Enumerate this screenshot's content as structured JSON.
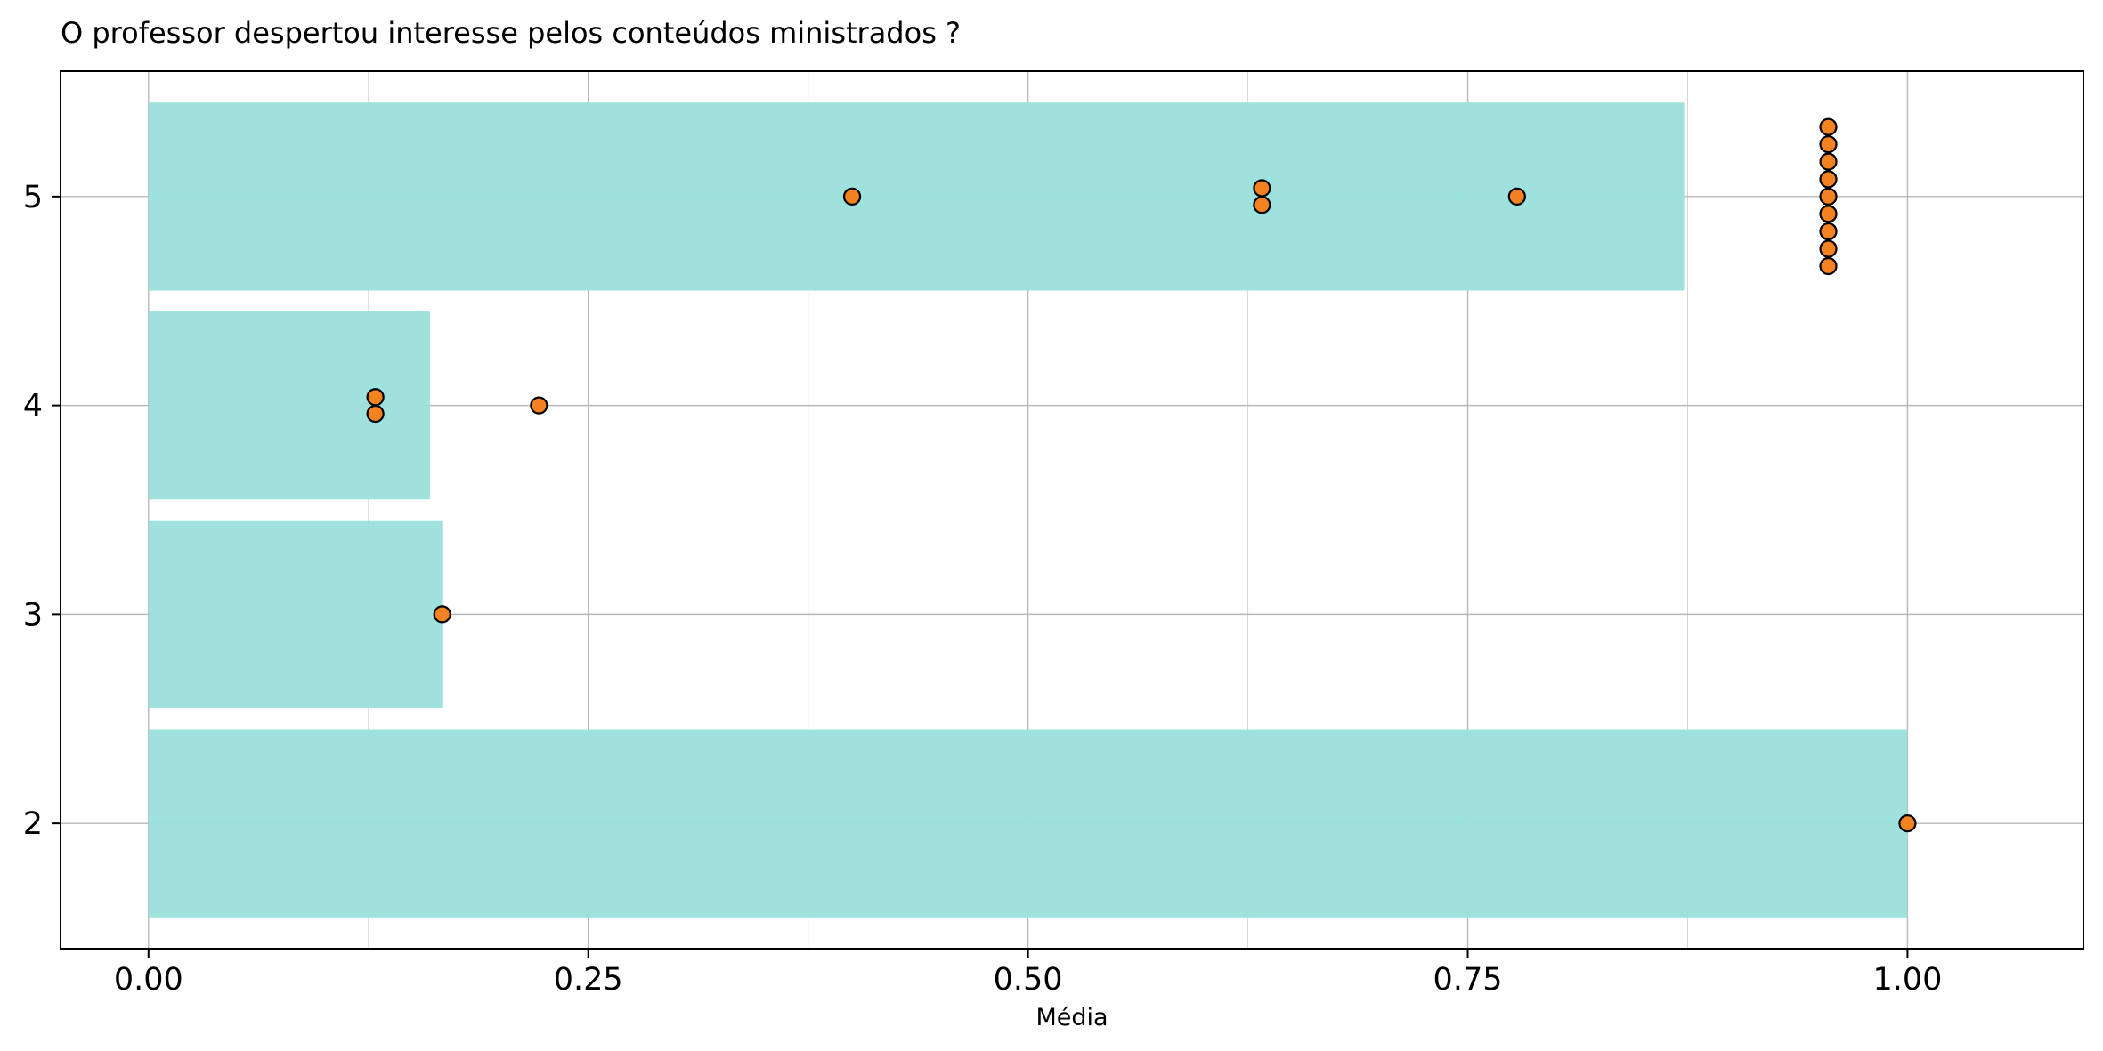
{
  "chart_data": {
    "type": "bar",
    "orientation": "horizontal",
    "title": "O professor despertou interesse pelos conteúdos ministrados ?",
    "xlabel": "Média",
    "ylabel": "",
    "xlim": [
      -0.05,
      1.1
    ],
    "ylim": [
      1.4,
      5.6
    ],
    "xticks": [
      0.0,
      0.25,
      0.5,
      0.75,
      1.0
    ],
    "xtick_labels": [
      "0.00",
      "0.25",
      "0.50",
      "0.75",
      "1.00"
    ],
    "yticks": [
      2,
      3,
      4,
      5
    ],
    "ytick_labels": [
      "2",
      "3",
      "4",
      "5"
    ],
    "grid": true,
    "bars": [
      {
        "category": 5,
        "value": 0.873
      },
      {
        "category": 4,
        "value": 0.16
      },
      {
        "category": 3,
        "value": 0.167
      },
      {
        "category": 2,
        "value": 1.0
      }
    ],
    "points": [
      {
        "x": 0.4,
        "y": 5.0
      },
      {
        "x": 0.633,
        "y": 5.04
      },
      {
        "x": 0.633,
        "y": 4.96
      },
      {
        "x": 0.778,
        "y": 5.0
      },
      {
        "x": 0.955,
        "y": 5.333
      },
      {
        "x": 0.955,
        "y": 5.25
      },
      {
        "x": 0.955,
        "y": 5.167
      },
      {
        "x": 0.955,
        "y": 5.083
      },
      {
        "x": 0.955,
        "y": 5.0
      },
      {
        "x": 0.955,
        "y": 4.917
      },
      {
        "x": 0.955,
        "y": 4.833
      },
      {
        "x": 0.955,
        "y": 4.75
      },
      {
        "x": 0.955,
        "y": 4.667
      },
      {
        "x": 0.129,
        "y": 4.04
      },
      {
        "x": 0.129,
        "y": 3.96
      },
      {
        "x": 0.222,
        "y": 4.0
      },
      {
        "x": 0.167,
        "y": 3.0
      },
      {
        "x": 1.0,
        "y": 2.0
      }
    ],
    "colors": {
      "bar": "#9be0dc",
      "point_fill": "#f58220",
      "point_edge": "#000000",
      "grid": "#b0b0b0",
      "axes": "#000000"
    }
  }
}
